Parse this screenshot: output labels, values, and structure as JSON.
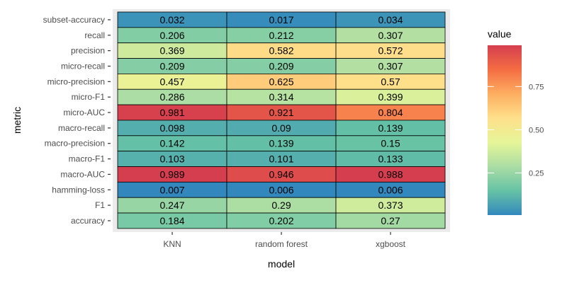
{
  "chart_data": {
    "type": "heatmap",
    "title": "",
    "xlabel": "model",
    "ylabel": "metric",
    "x_categories": [
      "KNN",
      "random forest",
      "xgboost"
    ],
    "y_categories": [
      "subset-accuracy",
      "recall",
      "precision",
      "micro-recall",
      "micro-precision",
      "micro-F1",
      "micro-AUC",
      "macro-recall",
      "macro-precision",
      "macro-F1",
      "macro-AUC",
      "hamming-loss",
      "F1",
      "accuracy"
    ],
    "values": [
      [
        "0.032",
        "0.017",
        "0.034"
      ],
      [
        "0.206",
        "0.212",
        "0.307"
      ],
      [
        "0.369",
        "0.582",
        "0.572"
      ],
      [
        "0.209",
        "0.209",
        "0.307"
      ],
      [
        "0.457",
        "0.625",
        "0.57"
      ],
      [
        "0.286",
        "0.314",
        "0.399"
      ],
      [
        "0.981",
        "0.921",
        "0.804"
      ],
      [
        "0.098",
        "0.09",
        "0.139"
      ],
      [
        "0.142",
        "0.139",
        "0.15"
      ],
      [
        "0.103",
        "0.101",
        "0.133"
      ],
      [
        "0.989",
        "0.946",
        "0.988"
      ],
      [
        "0.007",
        "0.006",
        "0.006"
      ],
      [
        "0.247",
        "0.29",
        "0.373"
      ],
      [
        "0.184",
        "0.202",
        "0.27"
      ]
    ],
    "legend": {
      "title": "value",
      "ticks": [
        "0.25",
        "0.50",
        "0.75"
      ],
      "range": [
        0.006,
        0.989
      ],
      "placement": "right"
    },
    "color_scale": [
      "#3288bd",
      "#66c2a5",
      "#abdda4",
      "#e6f598",
      "#fee08b",
      "#fdae61",
      "#f46d43",
      "#d53e4f"
    ],
    "panel_background": "#ebebeb"
  }
}
